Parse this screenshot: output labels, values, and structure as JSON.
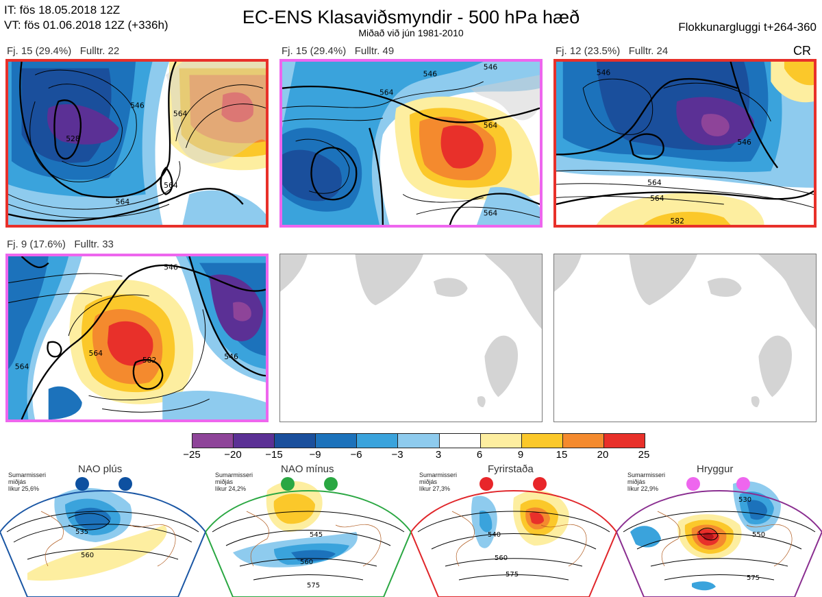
{
  "header": {
    "it_line": "IT: fös 18.05.2018 12Z",
    "vt_line": "VT: fös 01.06.2018 12Z  (+336h)",
    "title": "EC-ENS Klasaviðsmyndir - 500 hPa hæð",
    "subtitle": "Miðað við jún 1981-2010",
    "window": "Flokkunargluggi t+264-360"
  },
  "panels": [
    {
      "label": "Fj. 15 (29.4%)   Fulltr. 22",
      "border": "#e8302a",
      "tag": ""
    },
    {
      "label": "Fj. 15 (29.4%)   Fulltr. 49",
      "border": "#ee66ee",
      "tag": ""
    },
    {
      "label": "Fj. 12 (23.5%)   Fulltr. 24",
      "border": "#e8302a",
      "tag": "CR"
    },
    {
      "label": "Fj. 9 (17.6%)   Fulltr. 33",
      "border": "#ee66ee",
      "tag": ""
    }
  ],
  "contour_labels": {
    "p1": [
      "546",
      "528",
      "564",
      "564",
      "564"
    ],
    "p2": [
      "546",
      "546",
      "564",
      "564",
      "564"
    ],
    "p3": [
      "546",
      "546",
      "564",
      "564",
      "582"
    ],
    "p4": [
      "546",
      "546",
      "564",
      "564",
      "582"
    ]
  },
  "colorbar": {
    "ticks": [
      "−25",
      "−20",
      "−15",
      "−9",
      "−6",
      "−3",
      "3",
      "6",
      "9",
      "15",
      "20",
      "25"
    ],
    "colors": [
      "#8e4499",
      "#5b3095",
      "#1a4f9c",
      "#1c72bb",
      "#3aa3dc",
      "#8ecbee",
      "#ffffff",
      "#fdeea0",
      "#fbc82a",
      "#f48a2e",
      "#e8302a",
      "#b3141b"
    ]
  },
  "regimes": [
    {
      "name": "NAO plús",
      "note": "Sumarmisseri\nmiðjás\nlíkur 25,6%",
      "frame": "#1a56a4",
      "dot": "#0d50a0",
      "labels": [
        "535",
        "560"
      ]
    },
    {
      "name": "NAO mínus",
      "note": "Sumarmisseri\nmiðjás\nlíkur 24,2%",
      "frame": "#2aa742",
      "dot": "#2aa742",
      "labels": [
        "545",
        "560",
        "575"
      ]
    },
    {
      "name": "Fyrirstaða",
      "note": "Sumarmisseri\nmiðjás\nlíkur 27,3%",
      "frame": "#e0262a",
      "dot": "#e8262a",
      "labels": [
        "540",
        "560",
        "575"
      ]
    },
    {
      "name": "Hryggur",
      "note": "Sumarmisseri\nmiðjás\nlíkur 22,9%",
      "frame": "#8a2e90",
      "dot": "#ee66ee",
      "labels": [
        "530",
        "550",
        "575"
      ]
    }
  ]
}
